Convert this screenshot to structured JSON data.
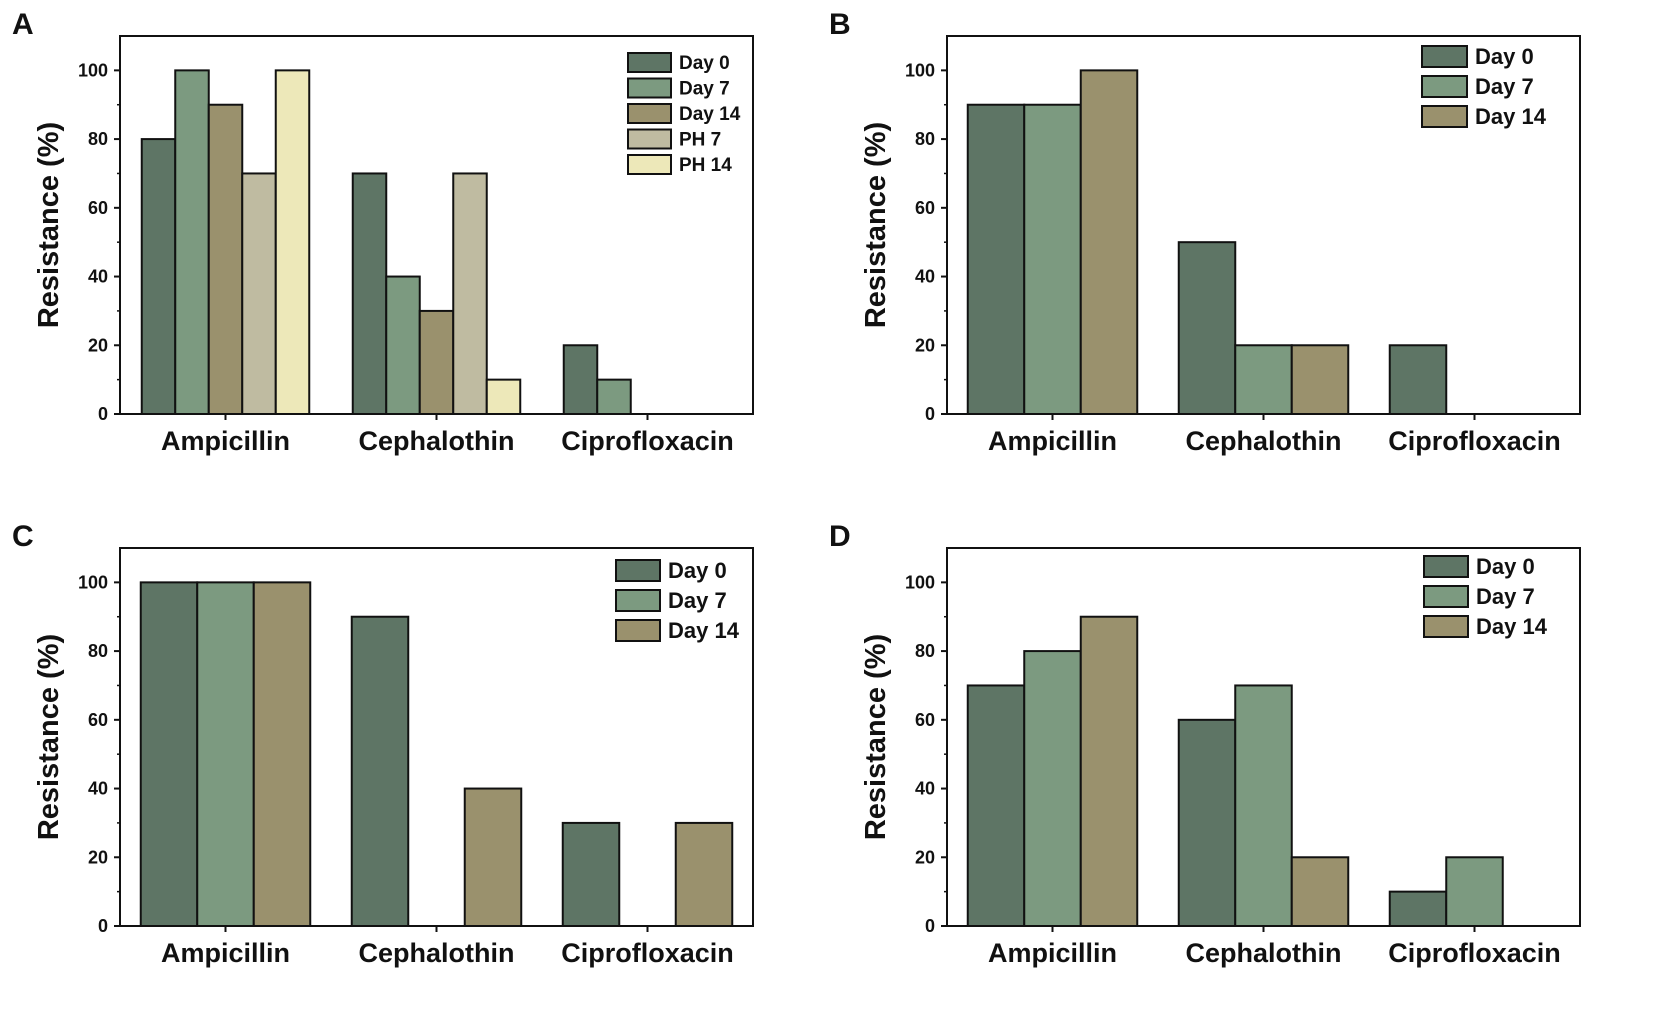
{
  "figure": {
    "panels": [
      "A",
      "B",
      "C",
      "D"
    ]
  },
  "colors": {
    "Day 0": "#5e7565",
    "Day 7": "#7c9a80",
    "Day 14": "#9a916d",
    "PH 7": "#bfbba1",
    "PH 14": "#ede8b9"
  },
  "chart_data": [
    {
      "panel": "A",
      "type": "bar",
      "ylabel": "Resistance (%)",
      "xlabel": "",
      "ylim": [
        0,
        110
      ],
      "yticks": [
        0,
        20,
        40,
        60,
        80,
        100
      ],
      "categories": [
        "Ampicillin",
        "Cephalothin",
        "Ciprofloxacin"
      ],
      "legend_position": "top-right",
      "series": [
        {
          "name": "Day 0",
          "values": [
            80,
            70,
            20
          ]
        },
        {
          "name": "Day 7",
          "values": [
            100,
            40,
            10
          ]
        },
        {
          "name": "Day 14",
          "values": [
            90,
            30,
            0
          ]
        },
        {
          "name": "PH 7",
          "values": [
            70,
            70,
            0
          ]
        },
        {
          "name": "PH 14",
          "values": [
            100,
            10,
            0
          ]
        }
      ]
    },
    {
      "panel": "B",
      "type": "bar",
      "ylabel": "Resistance (%)",
      "xlabel": "",
      "ylim": [
        0,
        110
      ],
      "yticks": [
        0,
        20,
        40,
        60,
        80,
        100
      ],
      "categories": [
        "Ampicillin",
        "Cephalothin",
        "Ciprofloxacin"
      ],
      "legend_position": "top-right",
      "series": [
        {
          "name": "Day 0",
          "values": [
            90,
            50,
            20
          ]
        },
        {
          "name": "Day 7",
          "values": [
            90,
            20,
            0
          ]
        },
        {
          "name": "Day 14",
          "values": [
            100,
            20,
            0
          ]
        }
      ]
    },
    {
      "panel": "C",
      "type": "bar",
      "ylabel": "Resistance (%)",
      "xlabel": "",
      "ylim": [
        0,
        110
      ],
      "yticks": [
        0,
        20,
        40,
        60,
        80,
        100
      ],
      "categories": [
        "Ampicillin",
        "Cephalothin",
        "Ciprofloxacin"
      ],
      "legend_position": "top-right",
      "series": [
        {
          "name": "Day 0",
          "values": [
            100,
            90,
            30
          ]
        },
        {
          "name": "Day 7",
          "values": [
            100,
            0,
            0
          ]
        },
        {
          "name": "Day 14",
          "values": [
            100,
            40,
            30
          ]
        }
      ]
    },
    {
      "panel": "D",
      "type": "bar",
      "ylabel": "Resistance (%)",
      "xlabel": "",
      "ylim": [
        0,
        110
      ],
      "yticks": [
        0,
        20,
        40,
        60,
        80,
        100
      ],
      "categories": [
        "Ampicillin",
        "Cephalothin",
        "Ciprofloxacin"
      ],
      "legend_position": "top-right",
      "series": [
        {
          "name": "Day 0",
          "values": [
            70,
            60,
            10
          ]
        },
        {
          "name": "Day 7",
          "values": [
            80,
            70,
            20
          ]
        },
        {
          "name": "Day 14",
          "values": [
            90,
            20,
            0
          ]
        }
      ]
    }
  ]
}
